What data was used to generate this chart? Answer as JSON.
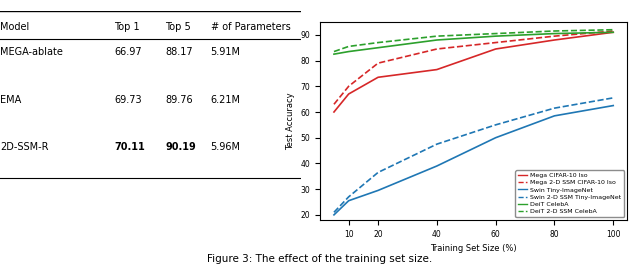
{
  "title": "Figure 3: The effect of the training set size.",
  "xlabel": "Training Set Size (%)",
  "ylabel": "Test Accuracy",
  "x_ticks": [
    10,
    20,
    40,
    60,
    80,
    100
  ],
  "series": [
    {
      "label": "Mega CIFAR-10 Iso",
      "color": "#d62728",
      "linestyle": "solid",
      "marker": "s",
      "x": [
        5,
        10,
        20,
        40,
        60,
        80,
        100
      ],
      "y": [
        60.0,
        67.0,
        73.5,
        76.5,
        84.5,
        88.0,
        91.0
      ]
    },
    {
      "label": "Mega 2-D SSM CIFAR-10 Iso",
      "color": "#d62728",
      "linestyle": "dashed",
      "marker": "s",
      "x": [
        5,
        10,
        20,
        40,
        60,
        80,
        100
      ],
      "y": [
        63.0,
        70.0,
        79.0,
        84.5,
        87.0,
        89.5,
        91.5
      ]
    },
    {
      "label": "Swin Tiny-ImageNet",
      "color": "#1f77b4",
      "linestyle": "solid",
      "marker": "s",
      "x": [
        5,
        10,
        20,
        40,
        60,
        80,
        100
      ],
      "y": [
        20.0,
        25.5,
        29.5,
        39.0,
        50.0,
        58.5,
        62.5
      ]
    },
    {
      "label": "Swin 2-D SSM Tiny-ImageNet",
      "color": "#1f77b4",
      "linestyle": "dashed",
      "marker": "s",
      "x": [
        5,
        10,
        20,
        40,
        60,
        80,
        100
      ],
      "y": [
        21.0,
        27.0,
        36.5,
        47.5,
        55.0,
        61.5,
        65.5
      ]
    },
    {
      "label": "DeiT CelebA",
      "color": "#2ca02c",
      "linestyle": "solid",
      "marker": "s",
      "x": [
        5,
        10,
        20,
        40,
        60,
        80,
        100
      ],
      "y": [
        82.5,
        83.5,
        85.0,
        88.0,
        89.5,
        90.5,
        91.0
      ]
    },
    {
      "label": "DeiT 2-D SSM CelebA",
      "color": "#2ca02c",
      "linestyle": "dashed",
      "marker": "s",
      "x": [
        5,
        10,
        20,
        40,
        60,
        80,
        100
      ],
      "y": [
        83.5,
        85.5,
        87.0,
        89.5,
        90.5,
        91.5,
        92.0
      ]
    }
  ],
  "ylim": [
    18,
    95
  ],
  "yticks": [
    20,
    30,
    40,
    50,
    60,
    70,
    80,
    90
  ],
  "legend_fontsize": 5.5,
  "table": {
    "headers": [
      "Model",
      "Top 1",
      "Top 5",
      "# of Parameters"
    ],
    "rows": [
      [
        "MEGA-ablate",
        "66.97",
        "88.17",
        "5.91M"
      ],
      [
        "EMA",
        "69.73",
        "89.76",
        "6.21M"
      ],
      [
        "2D-SSM-R",
        "70.11",
        "90.19",
        "5.96M"
      ]
    ],
    "bold_row": 2
  }
}
